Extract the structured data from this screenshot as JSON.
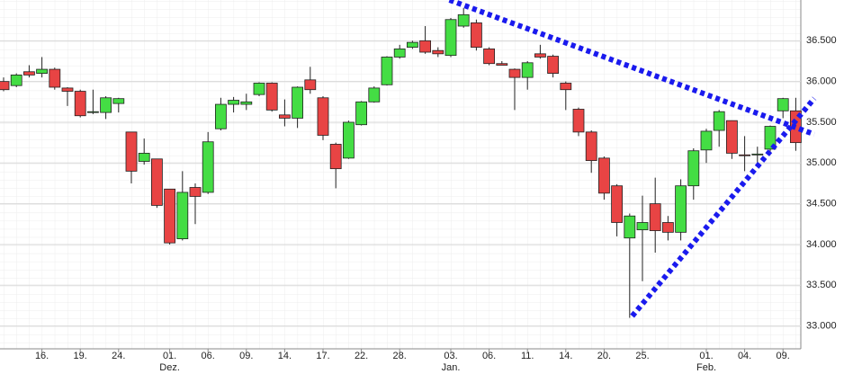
{
  "chart_data": {
    "type": "candlestick",
    "categories": [
      null,
      null,
      null,
      "16.",
      null,
      null,
      "19.",
      null,
      null,
      "24.",
      null,
      null,
      null,
      "01.",
      null,
      null,
      "06.",
      null,
      null,
      "09.",
      null,
      null,
      "14.",
      null,
      null,
      "17.",
      null,
      null,
      "22.",
      null,
      null,
      "28.",
      null,
      null,
      null,
      "03.",
      null,
      null,
      "06.",
      null,
      null,
      "11.",
      null,
      null,
      "14.",
      null,
      null,
      "20.",
      null,
      null,
      "25.",
      null,
      null,
      null,
      null,
      "01.",
      null,
      null,
      "04.",
      null,
      null,
      "09.",
      null
    ],
    "months": [
      null,
      null,
      null,
      null,
      null,
      null,
      null,
      null,
      null,
      null,
      null,
      null,
      null,
      "Dez.",
      null,
      null,
      null,
      null,
      null,
      null,
      null,
      null,
      null,
      null,
      null,
      null,
      null,
      null,
      null,
      null,
      null,
      null,
      null,
      null,
      null,
      "Jan.",
      null,
      null,
      null,
      null,
      null,
      null,
      null,
      null,
      null,
      null,
      null,
      null,
      null,
      null,
      null,
      null,
      null,
      null,
      null,
      "Feb.",
      null,
      null,
      null,
      null,
      null,
      null,
      null
    ],
    "open": [
      36000,
      35950,
      36120,
      36100,
      36150,
      35920,
      35880,
      35620,
      35620,
      35730,
      35380,
      35020,
      35050,
      34680,
      34070,
      34700,
      34640,
      35420,
      35720,
      35720,
      35840,
      35980,
      35590,
      35550,
      36020,
      35800,
      35230,
      35060,
      35470,
      35750,
      35960,
      36300,
      36420,
      36500,
      36380,
      36320,
      36680,
      36720,
      36400,
      36220,
      36150,
      36050,
      36340,
      36310,
      35980,
      35660,
      35380,
      35060,
      34720,
      34080,
      34180,
      34500,
      34270,
      34150,
      34720,
      35160,
      35400,
      35520,
      35100,
      35100,
      35170,
      35640,
      35640
    ],
    "high": [
      36050,
      36100,
      36200,
      36300,
      36170,
      35930,
      35900,
      35900,
      35820,
      35800,
      35380,
      35300,
      35050,
      34680,
      34900,
      34750,
      35380,
      35800,
      35810,
      35850,
      35990,
      35990,
      35780,
      35940,
      36180,
      35820,
      35250,
      35520,
      35760,
      35940,
      36310,
      36450,
      36500,
      36680,
      36420,
      36780,
      36900,
      36760,
      36420,
      36250,
      36160,
      36250,
      36450,
      36330,
      36000,
      35680,
      35400,
      35080,
      34740,
      34380,
      34600,
      34820,
      34350,
      34800,
      35180,
      35420,
      35650,
      35520,
      35330,
      35200,
      35460,
      35800,
      35800
    ],
    "low": [
      35880,
      35930,
      36050,
      36050,
      35900,
      35700,
      35560,
      35600,
      35540,
      35620,
      34750,
      34980,
      34450,
      34000,
      34050,
      34250,
      34620,
      35400,
      35620,
      35650,
      35820,
      35630,
      35450,
      35430,
      35850,
      35280,
      34690,
      35050,
      35460,
      35740,
      35950,
      36280,
      36400,
      36340,
      36300,
      36300,
      36660,
      36380,
      36200,
      36200,
      35650,
      35900,
      36280,
      36050,
      35650,
      35330,
      34880,
      34550,
      34100,
      33100,
      33550,
      33900,
      34050,
      34050,
      34550,
      35000,
      35200,
      35050,
      34900,
      35000,
      35100,
      35550,
      35150
    ],
    "close": [
      35900,
      36080,
      36080,
      36150,
      35930,
      35880,
      35580,
      35630,
      35800,
      35790,
      34900,
      35120,
      34480,
      34020,
      34640,
      34590,
      35260,
      35720,
      35770,
      35750,
      35980,
      35650,
      35550,
      35930,
      35900,
      35340,
      34930,
      35500,
      35750,
      35920,
      36300,
      36400,
      36480,
      36360,
      36340,
      36760,
      36820,
      36420,
      36220,
      36200,
      36050,
      36230,
      36300,
      36100,
      35900,
      35380,
      35030,
      34630,
      34270,
      34350,
      34270,
      34170,
      34150,
      34720,
      35150,
      35390,
      35630,
      35120,
      35090,
      35110,
      35450,
      35790,
      35250
    ],
    "up_color": "#44dd44",
    "down_color": "#e84444",
    "ylim": [
      32720,
      37000
    ],
    "yticks": [
      {
        "value": 33000,
        "label": "33.000"
      },
      {
        "value": 33500,
        "label": "33.500"
      },
      {
        "value": 34000,
        "label": "34.000"
      },
      {
        "value": 34500,
        "label": "34.500"
      },
      {
        "value": 35000,
        "label": "35.000"
      },
      {
        "value": 35500,
        "label": "35.500"
      },
      {
        "value": 36000,
        "label": "36.000"
      },
      {
        "value": 36500,
        "label": "36.500"
      }
    ],
    "grid": true,
    "trendlines": [
      {
        "color": "#1a1aee",
        "points": [
          [
            34.9,
            37000
          ],
          [
            63.45,
            35352
          ]
        ]
      },
      {
        "color": "#1a1aee",
        "points": [
          [
            49.2,
            33122
          ],
          [
            63.45,
            35793
          ]
        ]
      }
    ]
  }
}
